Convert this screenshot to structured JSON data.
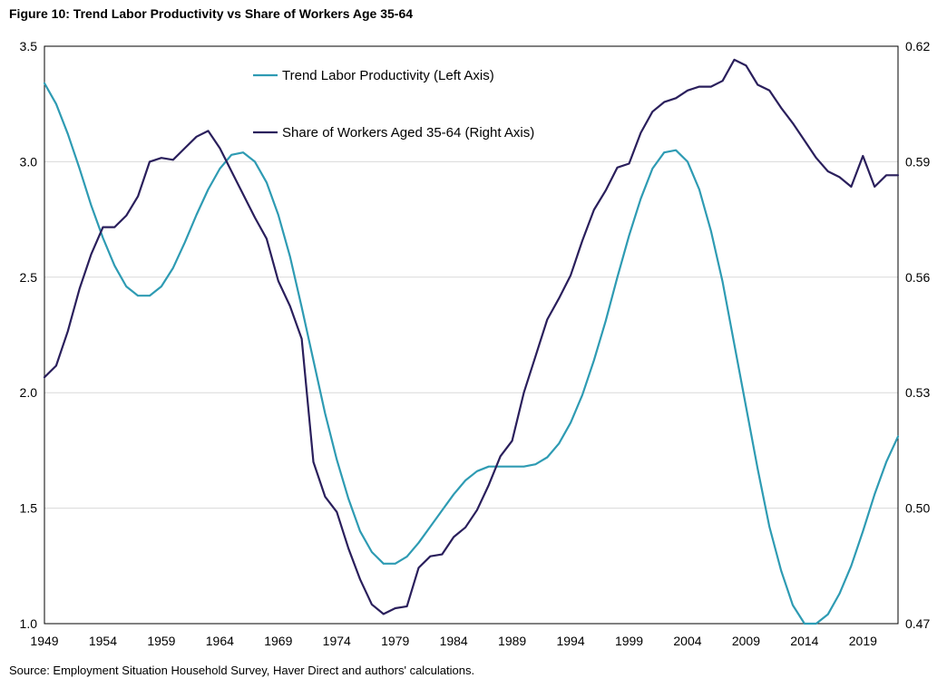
{
  "title": "Figure 10: Trend Labor Productivity vs Share of Workers Age 35-64",
  "source": "Source: Employment Situation Household Survey, Haver Direct and authors' calculations.",
  "colors": {
    "productivity": "#2e9bb3",
    "share": "#2a1f5c",
    "grid": "#d9d9d9",
    "frame": "#000000"
  },
  "chart_data": {
    "type": "line",
    "x_ticks": [
      "1949",
      "1954",
      "1959",
      "1964",
      "1969",
      "1974",
      "1979",
      "1984",
      "1989",
      "1994",
      "1999",
      "2004",
      "2009",
      "2014",
      "2019"
    ],
    "left_axis": {
      "range": [
        1.0,
        3.5
      ],
      "ticks": [
        "3.5",
        "3.0",
        "2.5",
        "2.0",
        "1.5",
        "1.0"
      ]
    },
    "right_axis": {
      "range": [
        0.47,
        0.62
      ],
      "ticks": [
        "0.62",
        "0.59",
        "0.56",
        "0.53",
        "0.50",
        "0.47"
      ]
    },
    "x_range": [
      1949,
      2022
    ],
    "grid": "horizontal",
    "legend_position": "top-center",
    "series": [
      {
        "name": "Trend Labor Productivity (Left Axis)",
        "axis": "left",
        "x": [
          1949,
          1950,
          1951,
          1952,
          1953,
          1954,
          1955,
          1956,
          1957,
          1958,
          1959,
          1960,
          1961,
          1962,
          1963,
          1964,
          1965,
          1966,
          1967,
          1968,
          1969,
          1970,
          1971,
          1972,
          1973,
          1974,
          1975,
          1976,
          1977,
          1978,
          1979,
          1980,
          1981,
          1982,
          1983,
          1984,
          1985,
          1986,
          1987,
          1988,
          1989,
          1990,
          1991,
          1992,
          1993,
          1994,
          1995,
          1996,
          1997,
          1998,
          1999,
          2000,
          2001,
          2002,
          2003,
          2004,
          2005,
          2006,
          2007,
          2008,
          2009,
          2010,
          2011,
          2012,
          2013,
          2014,
          2015,
          2016,
          2017,
          2018,
          2019,
          2020,
          2021,
          2022
        ],
        "values": [
          3.34,
          3.25,
          3.12,
          2.97,
          2.81,
          2.67,
          2.55,
          2.46,
          2.42,
          2.42,
          2.46,
          2.54,
          2.65,
          2.77,
          2.88,
          2.97,
          3.03,
          3.04,
          3.0,
          2.91,
          2.77,
          2.59,
          2.37,
          2.14,
          1.91,
          1.71,
          1.54,
          1.4,
          1.31,
          1.26,
          1.26,
          1.29,
          1.35,
          1.42,
          1.49,
          1.56,
          1.62,
          1.66,
          1.68,
          1.68,
          1.68,
          1.68,
          1.69,
          1.72,
          1.78,
          1.87,
          1.99,
          2.14,
          2.31,
          2.5,
          2.68,
          2.84,
          2.97,
          3.04,
          3.05,
          3.0,
          2.88,
          2.7,
          2.48,
          2.21,
          1.94,
          1.67,
          1.42,
          1.23,
          1.08,
          1.0,
          1.0,
          1.04,
          1.13,
          1.25,
          1.4,
          1.56,
          1.7,
          1.81
        ]
      },
      {
        "name": "Share of Workers Aged 35-64 (Right Axis)",
        "axis": "right",
        "x": [
          1949,
          1950,
          1951,
          1952,
          1953,
          1954,
          1955,
          1956,
          1957,
          1958,
          1959,
          1960,
          1961,
          1962,
          1963,
          1964,
          1965,
          1966,
          1967,
          1968,
          1969,
          1970,
          1971,
          1972,
          1973,
          1974,
          1975,
          1976,
          1977,
          1978,
          1979,
          1980,
          1981,
          1982,
          1983,
          1984,
          1985,
          1986,
          1987,
          1988,
          1989,
          1990,
          1991,
          1992,
          1993,
          1994,
          1995,
          1996,
          1997,
          1998,
          1999,
          2000,
          2001,
          2002,
          2003,
          2004,
          2005,
          2006,
          2007,
          2008,
          2009,
          2010,
          2011,
          2012,
          2013,
          2014,
          2015,
          2016,
          2017,
          2018,
          2019,
          2020,
          2021,
          2022
        ],
        "values": [
          0.534,
          0.537,
          0.546,
          0.557,
          0.566,
          0.573,
          0.573,
          0.576,
          0.581,
          0.59,
          0.591,
          0.5905,
          0.5935,
          0.5965,
          0.598,
          0.5935,
          0.5875,
          0.5815,
          0.5755,
          0.57,
          0.559,
          0.5525,
          0.544,
          0.512,
          0.503,
          0.499,
          0.4895,
          0.4815,
          0.475,
          0.4725,
          0.474,
          0.4745,
          0.4845,
          0.4875,
          0.488,
          0.4925,
          0.495,
          0.4995,
          0.506,
          0.5135,
          0.5175,
          0.53,
          0.5395,
          0.549,
          0.5545,
          0.5605,
          0.5695,
          0.5775,
          0.5825,
          0.5885,
          0.5895,
          0.5975,
          0.603,
          0.6055,
          0.6065,
          0.6085,
          0.6095,
          0.6095,
          0.611,
          0.6165,
          0.615,
          0.61,
          0.6085,
          0.604,
          0.6,
          0.5955,
          0.591,
          0.5875,
          0.586,
          0.5835,
          0.5915,
          0.5835,
          0.5865,
          0.5865
        ]
      }
    ]
  }
}
